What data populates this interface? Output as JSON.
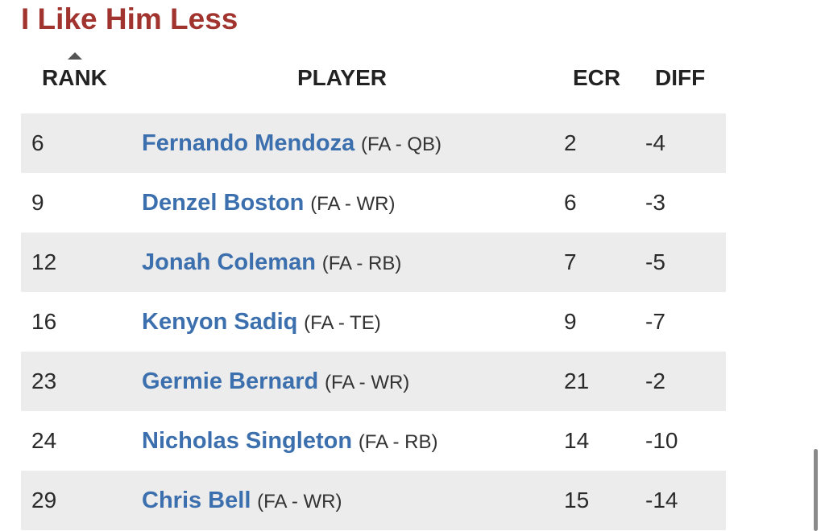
{
  "section": {
    "title": "I Like Him Less"
  },
  "table": {
    "headers": {
      "rank": "RANK",
      "player": "PLAYER",
      "ecr": "ECR",
      "diff": "DIFF"
    },
    "sort": {
      "column": "rank",
      "direction": "ascending"
    },
    "rows": [
      {
        "rank": "6",
        "name": "Fernando Mendoza",
        "meta": "(FA - QB)",
        "ecr": "2",
        "diff": "-4"
      },
      {
        "rank": "9",
        "name": "Denzel Boston",
        "meta": "(FA - WR)",
        "ecr": "6",
        "diff": "-3"
      },
      {
        "rank": "12",
        "name": "Jonah Coleman",
        "meta": "(FA - RB)",
        "ecr": "7",
        "diff": "-5"
      },
      {
        "rank": "16",
        "name": "Kenyon Sadiq",
        "meta": "(FA - TE)",
        "ecr": "9",
        "diff": "-7"
      },
      {
        "rank": "23",
        "name": "Germie Bernard",
        "meta": "(FA - WR)",
        "ecr": "21",
        "diff": "-2"
      },
      {
        "rank": "24",
        "name": "Nicholas Singleton",
        "meta": "(FA - RB)",
        "ecr": "14",
        "diff": "-10"
      },
      {
        "rank": "29",
        "name": "Chris Bell",
        "meta": "(FA - WR)",
        "ecr": "15",
        "diff": "-14"
      }
    ]
  },
  "colors": {
    "title": "#a2342f",
    "player_link": "#3c6fad",
    "row_shade": "#ececec"
  }
}
